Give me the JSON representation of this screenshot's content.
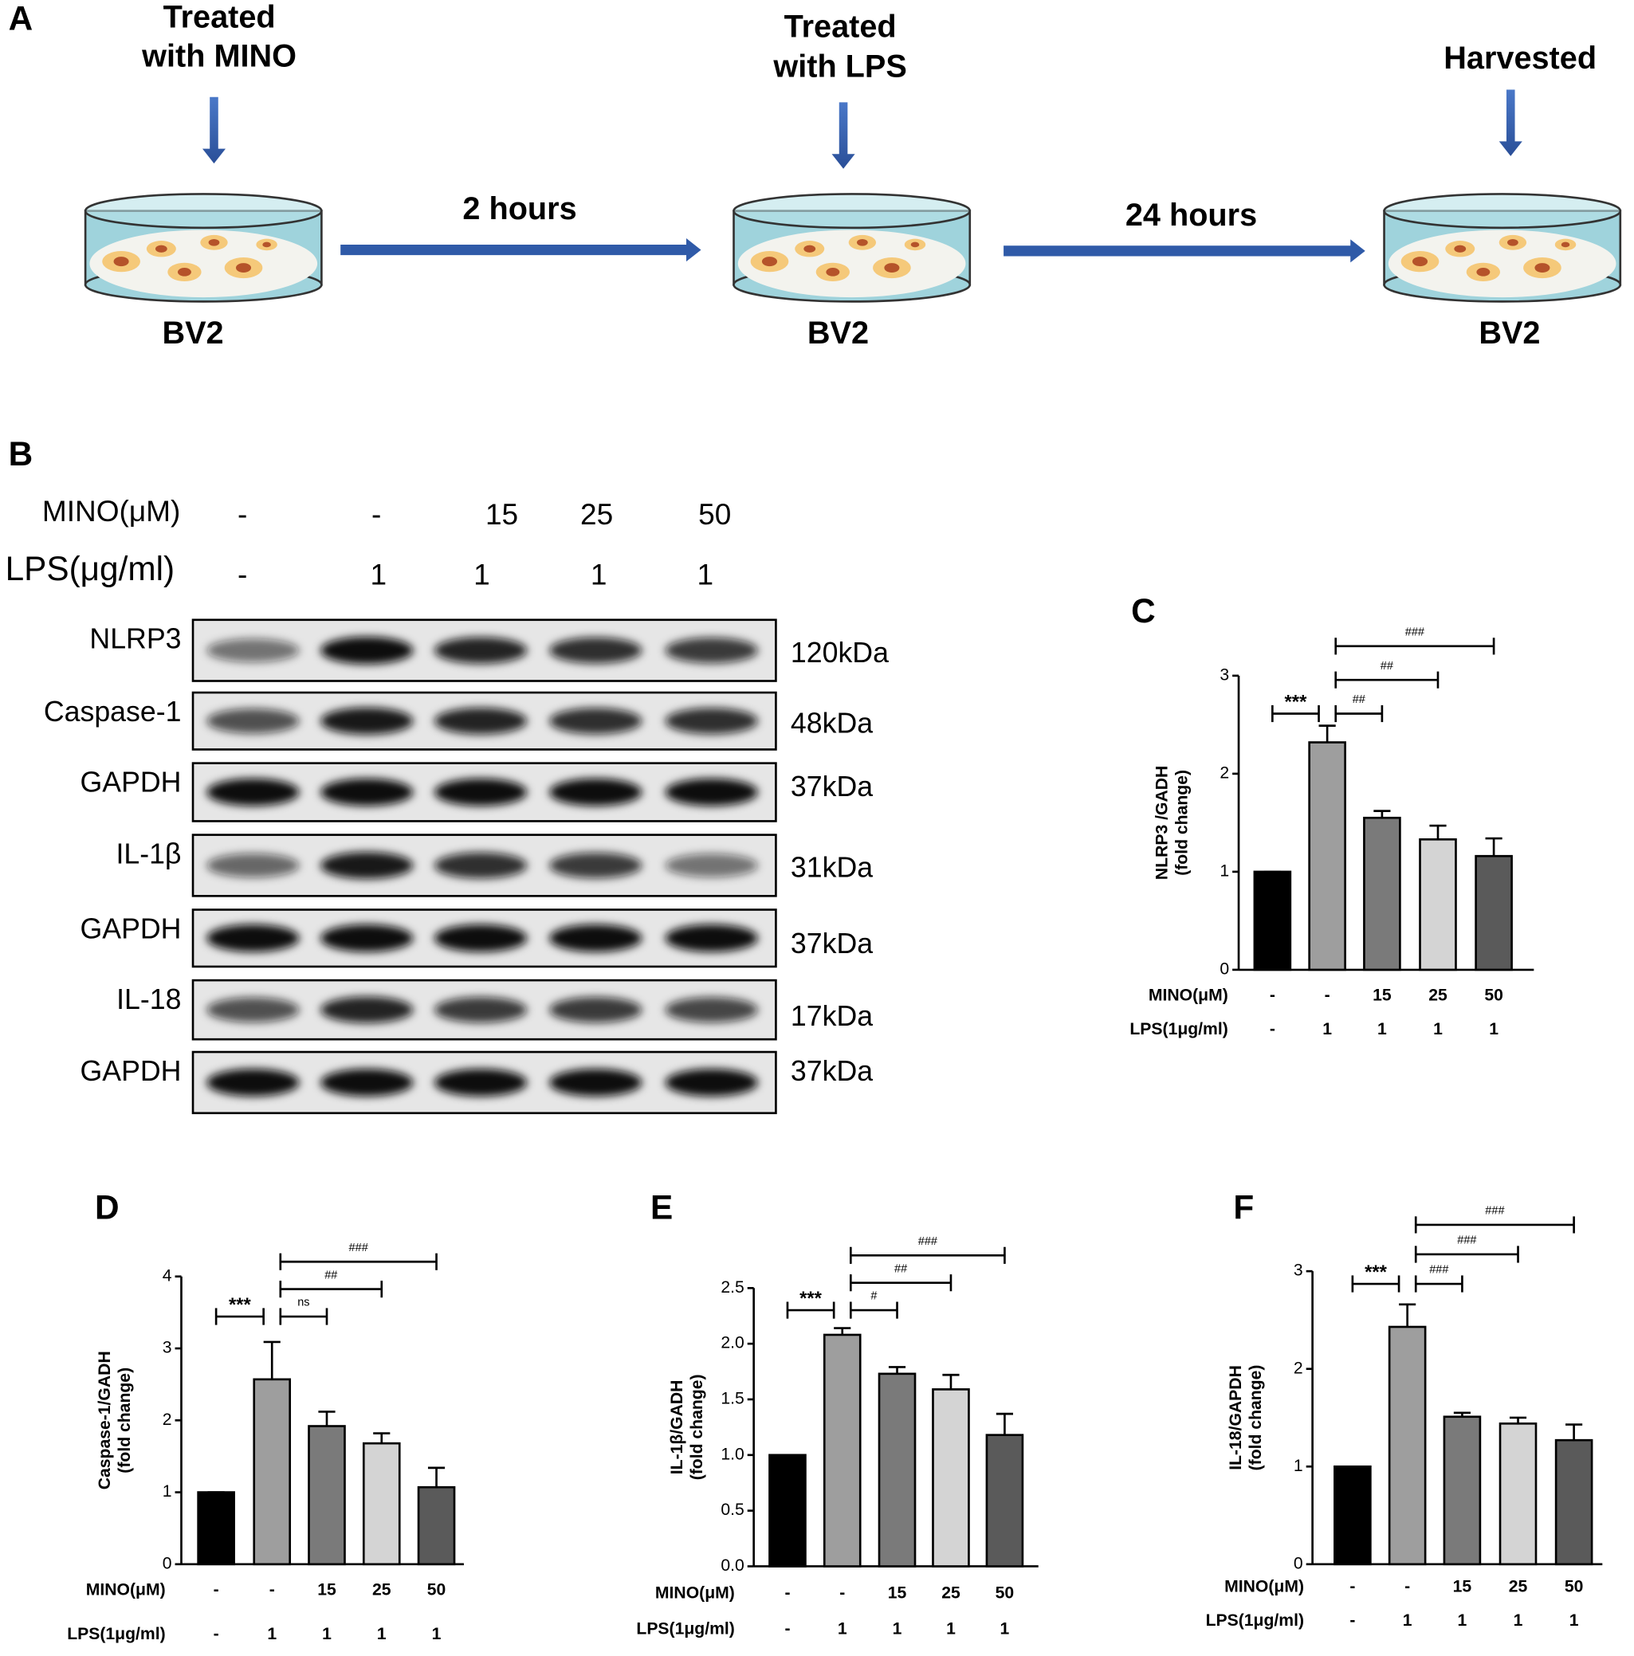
{
  "panel_a": {
    "label": "A",
    "steps": [
      {
        "title_lines": [
          "Treated",
          "with MINO"
        ],
        "cell": "BV2"
      },
      {
        "title_lines": [
          "Treated",
          "with LPS"
        ],
        "cell": "BV2"
      },
      {
        "title_lines": [
          "Harvested"
        ],
        "cell": "BV2"
      }
    ],
    "intervals": [
      "2 hours",
      "24 hours"
    ]
  },
  "panel_b": {
    "label": "B",
    "treatments": [
      {
        "label": "MINO(μM)",
        "values": [
          "-",
          "-",
          "15",
          "25",
          "50"
        ]
      },
      {
        "label": "LPS(μg/ml)",
        "values": [
          "-",
          "1",
          "1",
          "1",
          "1"
        ]
      }
    ],
    "blots": [
      {
        "name": "NLRP3",
        "size": "120kDa"
      },
      {
        "name": "Caspase-1",
        "size": "48kDa"
      },
      {
        "name": "GAPDH",
        "size": "37kDa"
      },
      {
        "name": "IL-1β",
        "size": "31kDa"
      },
      {
        "name": "GAPDH",
        "size": "37kDa"
      },
      {
        "name": "IL-18",
        "size": "17kDa"
      },
      {
        "name": "GAPDH",
        "size": "37kDa"
      }
    ]
  },
  "chart_data": [
    {
      "type": "bar",
      "panel": "C",
      "ylabel": "NLRP3 /GADH",
      "ylabel_note": "(fold change)",
      "row_label": "MINO(μM)",
      "categories": [
        "-",
        "-",
        "15",
        "25",
        "50"
      ],
      "second_row_label": "LPS(1μg/ml)",
      "second_row": [
        "-",
        "1",
        "1",
        "1",
        "1"
      ],
      "values": [
        1,
        2.32,
        1.55,
        1.33,
        1.16
      ],
      "errors": [
        0,
        0.17,
        0.07,
        0.14,
        0.18
      ],
      "colors": [
        "#000000",
        "#9e9e9e",
        "#7a7a7a",
        "#d4d4d4",
        "#5a5a5a"
      ],
      "ylim": [
        0,
        3
      ],
      "yticks": [
        0,
        1,
        2,
        3
      ],
      "significance": [
        "***",
        "##",
        "##",
        "###"
      ]
    },
    {
      "type": "bar",
      "panel": "D",
      "ylabel": "Caspase-1/GADH",
      "ylabel_note": "(fold change)",
      "row_label": "MINO(μM)",
      "categories": [
        "-",
        "-",
        "15",
        "25",
        "50"
      ],
      "second_row_label": "LPS(1μg/ml)",
      "second_row": [
        "-",
        "1",
        "1",
        "1",
        "1"
      ],
      "values": [
        1,
        2.57,
        1.92,
        1.68,
        1.07
      ],
      "errors": [
        0,
        0.52,
        0.2,
        0.14,
        0.27
      ],
      "colors": [
        "#000000",
        "#9e9e9e",
        "#7a7a7a",
        "#d4d4d4",
        "#5a5a5a"
      ],
      "ylim": [
        0,
        4
      ],
      "yticks": [
        0,
        1,
        2,
        3,
        4
      ],
      "significance": [
        "***",
        "ns",
        "##",
        "###"
      ]
    },
    {
      "type": "bar",
      "panel": "E",
      "ylabel": "IL-1β/GADH",
      "ylabel_note": "(fold change)",
      "row_label": "MINO(μM)",
      "categories": [
        "-",
        "-",
        "15",
        "25",
        "50"
      ],
      "second_row_label": "LPS(1μg/ml)",
      "second_row": [
        "-",
        "1",
        "1",
        "1",
        "1"
      ],
      "values": [
        1,
        2.08,
        1.73,
        1.59,
        1.18
      ],
      "errors": [
        0,
        0.06,
        0.06,
        0.13,
        0.19
      ],
      "colors": [
        "#000000",
        "#9e9e9e",
        "#7a7a7a",
        "#d4d4d4",
        "#5a5a5a"
      ],
      "ylim": [
        0,
        2.5
      ],
      "yticks": [
        {
          "value": 0,
          "label": "0.0"
        },
        0.5,
        {
          "value": 1,
          "label": "1.0"
        },
        1.5,
        {
          "value": 2,
          "label": "2.0"
        },
        2.5
      ],
      "significance": [
        "***",
        "#",
        "##",
        "###"
      ]
    },
    {
      "type": "bar",
      "panel": "F",
      "ylabel": "IL-18/GAPDH",
      "ylabel_note": "(fold change)",
      "row_label": "MINO(μM)",
      "categories": [
        "-",
        "-",
        "15",
        "25",
        "50"
      ],
      "second_row_label": "LPS(1μg/ml)",
      "second_row": [
        "-",
        "1",
        "1",
        "1",
        "1"
      ],
      "values": [
        1,
        2.43,
        1.51,
        1.44,
        1.27
      ],
      "errors": [
        0,
        0.23,
        0.04,
        0.06,
        0.16
      ],
      "colors": [
        "#000000",
        "#9e9e9e",
        "#7a7a7a",
        "#d4d4d4",
        "#5a5a5a"
      ],
      "ylim": [
        0,
        3
      ],
      "yticks": [
        0,
        1,
        2,
        3
      ],
      "significance": [
        "***",
        "###",
        "###",
        "###"
      ]
    }
  ]
}
